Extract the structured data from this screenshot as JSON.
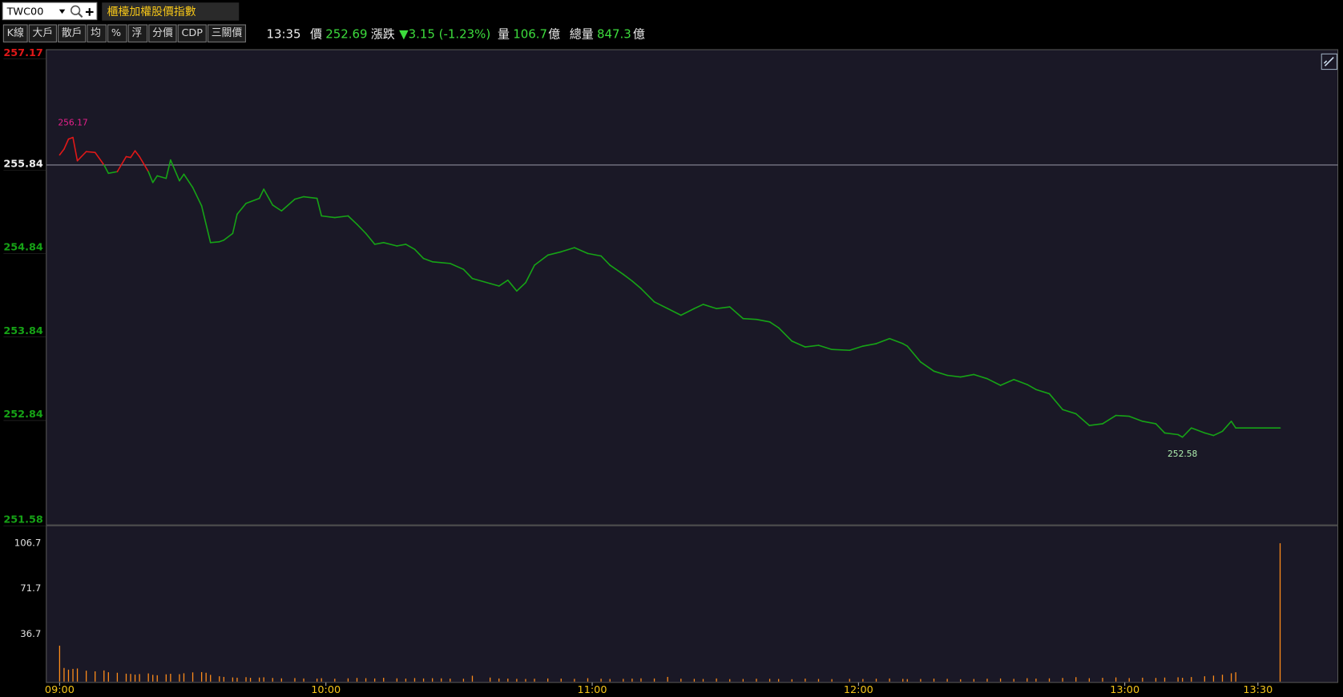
{
  "header": {
    "symbol": "TWC00",
    "index_name": "櫃檯加權股價指數",
    "buttons": [
      "K線",
      "大戶",
      "散戶",
      "均",
      "%",
      "浮",
      "分價",
      "CDP",
      "三關價"
    ],
    "time": "13:35",
    "price_label": "價",
    "price": "252.69",
    "change_label": "漲跌",
    "change": "▼3.15 (-1.23%)",
    "volume_label": "量",
    "volume": "106.7",
    "volume_unit": "億",
    "total_label": "總量",
    "total": "847.3",
    "total_unit": "億"
  },
  "chart_data": [
    {
      "type": "line",
      "x": [
        "09:00",
        "09:01",
        "09:02",
        "09:03",
        "09:04",
        "09:06",
        "09:08",
        "09:10",
        "09:11",
        "09:13",
        "09:15",
        "09:16",
        "09:17",
        "09:18",
        "09:20",
        "09:21",
        "09:22",
        "09:24",
        "09:25",
        "09:27",
        "09:28",
        "09:30",
        "09:32",
        "09:33",
        "09:34",
        "09:36",
        "09:37",
        "09:39",
        "09:40",
        "09:42",
        "09:43",
        "09:45",
        "09:46",
        "09:48",
        "09:50",
        "09:53",
        "09:55",
        "09:58",
        "09:59",
        "10:02",
        "10:05",
        "10:07",
        "10:09",
        "10:11",
        "10:13",
        "10:16",
        "10:18",
        "10:20",
        "10:22",
        "10:24",
        "10:26",
        "10:28",
        "10:31",
        "10:33",
        "10:37",
        "10:39",
        "10:41",
        "10:43",
        "10:45",
        "10:47",
        "10:50",
        "10:53",
        "10:56",
        "10:59",
        "11:02",
        "11:04",
        "11:07",
        "11:09",
        "11:11",
        "11:14",
        "11:17",
        "11:20",
        "11:23",
        "11:25",
        "11:28",
        "11:31",
        "11:34",
        "11:37",
        "11:40",
        "11:42",
        "11:45",
        "11:48",
        "11:51",
        "11:54",
        "11:58",
        "12:01",
        "12:04",
        "12:07",
        "12:10",
        "12:11",
        "12:14",
        "12:17",
        "12:20",
        "12:23",
        "12:26",
        "12:29",
        "12:32",
        "12:35",
        "12:38",
        "12:40",
        "12:43",
        "12:46",
        "12:49",
        "12:52",
        "12:55",
        "12:58",
        "13:01",
        "13:04",
        "13:07",
        "13:09",
        "13:12",
        "13:13",
        "13:15",
        "13:18",
        "13:20",
        "13:22",
        "13:24",
        "13:25",
        "13:35"
      ],
      "values": [
        255.96,
        256.03,
        256.15,
        256.17,
        255.89,
        256.0,
        255.99,
        255.84,
        255.74,
        255.76,
        255.94,
        255.93,
        256.01,
        255.94,
        255.76,
        255.63,
        255.71,
        255.68,
        255.9,
        255.65,
        255.73,
        255.57,
        255.35,
        255.13,
        254.91,
        254.92,
        254.94,
        255.02,
        255.25,
        255.38,
        255.4,
        255.44,
        255.55,
        255.36,
        255.29,
        255.43,
        255.46,
        255.44,
        255.23,
        255.21,
        255.23,
        255.13,
        255.02,
        254.89,
        254.91,
        254.87,
        254.89,
        254.83,
        254.72,
        254.68,
        254.67,
        254.66,
        254.59,
        254.48,
        254.42,
        254.39,
        254.46,
        254.33,
        254.43,
        254.64,
        254.76,
        254.8,
        254.85,
        254.78,
        254.75,
        254.64,
        254.53,
        254.45,
        254.36,
        254.2,
        254.12,
        254.04,
        254.12,
        254.17,
        254.12,
        254.14,
        254.0,
        253.99,
        253.96,
        253.89,
        253.73,
        253.66,
        253.68,
        253.63,
        253.62,
        253.67,
        253.7,
        253.76,
        253.7,
        253.67,
        253.48,
        253.37,
        253.32,
        253.3,
        253.33,
        253.28,
        253.2,
        253.27,
        253.21,
        253.15,
        253.1,
        252.91,
        252.86,
        252.72,
        252.74,
        252.84,
        252.83,
        252.77,
        252.74,
        252.63,
        252.61,
        252.58,
        252.69,
        252.63,
        252.6,
        252.65,
        252.77,
        252.69,
        252.69
      ],
      "reference": 255.84,
      "up_color": "#e01818",
      "down_color": "#16a316",
      "flat_color": "#f0f0f0",
      "xlim": [
        "08:57",
        "13:48"
      ],
      "ylim": [
        251.58,
        257.17
      ],
      "yticks": [
        251.58,
        252.84,
        253.84,
        254.84,
        255.84,
        257.17
      ],
      "annotations": [
        {
          "text": "256.17",
          "x": "09:03",
          "y": 256.17,
          "position": "above",
          "color": "#e8208c"
        },
        {
          "text": "252.58",
          "x": "13:13",
          "y": 252.58,
          "position": "below",
          "color": "#b0f0b0"
        }
      ]
    },
    {
      "type": "bar",
      "x": [
        "09:00",
        "09:01",
        "09:02",
        "09:03",
        "09:04",
        "09:06",
        "09:08",
        "09:10",
        "09:11",
        "09:13",
        "09:15",
        "09:16",
        "09:17",
        "09:18",
        "09:20",
        "09:21",
        "09:22",
        "09:24",
        "09:25",
        "09:27",
        "09:28",
        "09:30",
        "09:32",
        "09:33",
        "09:34",
        "09:36",
        "09:37",
        "09:39",
        "09:40",
        "09:42",
        "09:43",
        "09:45",
        "09:46",
        "09:48",
        "09:50",
        "09:53",
        "09:55",
        "09:58",
        "09:59",
        "10:02",
        "10:05",
        "10:07",
        "10:09",
        "10:11",
        "10:13",
        "10:16",
        "10:18",
        "10:20",
        "10:22",
        "10:24",
        "10:26",
        "10:28",
        "10:31",
        "10:33",
        "10:37",
        "10:39",
        "10:41",
        "10:43",
        "10:45",
        "10:47",
        "10:50",
        "10:53",
        "10:56",
        "10:59",
        "11:02",
        "11:04",
        "11:07",
        "11:09",
        "11:11",
        "11:14",
        "11:17",
        "11:20",
        "11:23",
        "11:25",
        "11:28",
        "11:31",
        "11:34",
        "11:37",
        "11:40",
        "11:42",
        "11:45",
        "11:48",
        "11:51",
        "11:54",
        "11:58",
        "12:01",
        "12:04",
        "12:07",
        "12:10",
        "12:11",
        "12:14",
        "12:17",
        "12:20",
        "12:23",
        "12:26",
        "12:29",
        "12:32",
        "12:35",
        "12:38",
        "12:40",
        "12:43",
        "12:46",
        "12:49",
        "12:52",
        "12:55",
        "12:58",
        "13:01",
        "13:04",
        "13:07",
        "13:09",
        "13:12",
        "13:13",
        "13:15",
        "13:18",
        "13:20",
        "13:22",
        "13:24",
        "13:25",
        "13:35"
      ],
      "values": [
        27.7,
        10.5,
        9.2,
        9.8,
        10.1,
        8.4,
        7.9,
        8.6,
        7.2,
        6.8,
        6.1,
        5.9,
        5.4,
        5.8,
        6.3,
        5.2,
        4.9,
        5.6,
        6.0,
        5.7,
        6.4,
        7.1,
        7.3,
        6.8,
        5.2,
        4.1,
        3.6,
        3.2,
        3.0,
        3.4,
        2.9,
        3.1,
        3.3,
        2.8,
        2.5,
        2.7,
        2.4,
        2.3,
        2.6,
        2.2,
        2.5,
        2.8,
        2.6,
        2.4,
        2.9,
        2.5,
        2.3,
        2.7,
        2.4,
        2.6,
        2.5,
        2.3,
        2.2,
        4.5,
        3.1,
        2.4,
        2.3,
        2.1,
        2.0,
        2.2,
        2.4,
        2.3,
        2.1,
        2.6,
        2.2,
        2.0,
        2.1,
        2.3,
        2.5,
        2.4,
        3.6,
        2.2,
        2.1,
        2.0,
        2.4,
        1.9,
        2.0,
        2.2,
        2.1,
        2.0,
        1.8,
        2.3,
        2.0,
        1.9,
        2.1,
        2.0,
        2.2,
        2.4,
        2.1,
        1.9,
        2.0,
        2.3,
        2.1,
        1.8,
        2.0,
        2.2,
        2.4,
        2.1,
        2.6,
        2.3,
        2.5,
        2.8,
        3.4,
        2.6,
        2.9,
        3.2,
        2.7,
        3.0,
        2.8,
        3.1,
        3.3,
        2.9,
        3.5,
        4.1,
        4.6,
        5.3,
        6.4,
        7.2,
        106.7
      ],
      "color": "#ff8c1a",
      "xlim": [
        "08:57",
        "13:48"
      ],
      "xticks": [
        "09:00",
        "10:00",
        "11:00",
        "12:00",
        "13:00",
        "13:30"
      ],
      "ylim": [
        0,
        120.2
      ],
      "yticks": [
        36.7,
        71.7,
        106.7
      ]
    }
  ]
}
